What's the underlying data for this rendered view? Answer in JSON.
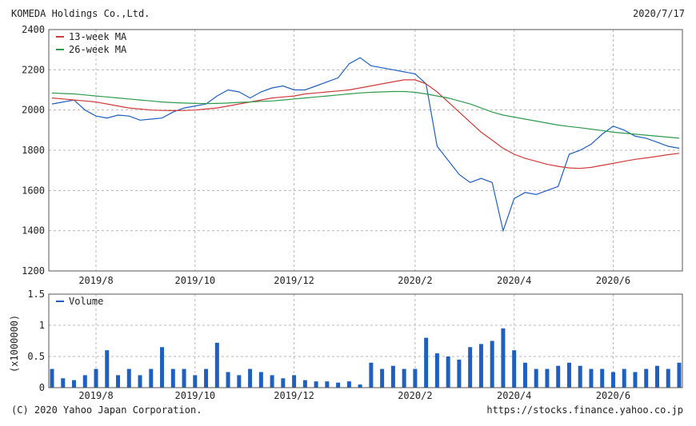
{
  "header": {
    "company": "KOMEDA Holdings Co.,Ltd.",
    "date": "2020/7/17"
  },
  "footer": {
    "copyright": "(C) 2020 Yahoo Japan Corporation.",
    "url": "https://stocks.finance.yahoo.co.jp"
  },
  "colors": {
    "price": "#1f5fbf",
    "ma13": "#d03a3a",
    "ma26": "#2e9a4e",
    "volume": "#1f5fbf",
    "grid": "#b8b8b8",
    "frame": "#555555"
  },
  "chart_data": [
    {
      "type": "line",
      "title": "",
      "x_labels": [
        "2019/8",
        "2019/10",
        "2019/12",
        "2020/2",
        "2020/4",
        "2020/6"
      ],
      "x_label_weeks": [
        4,
        13,
        22,
        33,
        42,
        51
      ],
      "week_count": 58,
      "ylim": [
        1200,
        2400
      ],
      "y_ticks": [
        1200,
        1400,
        1600,
        1800,
        2000,
        2200,
        2400
      ],
      "legend": [
        "13-week MA",
        "26-week MA"
      ],
      "legend_position": "top-left",
      "grid": true,
      "series": [
        {
          "name": "Price",
          "color": "#1f5fbf",
          "values": [
            2030,
            2040,
            2050,
            2000,
            1970,
            1960,
            1975,
            1970,
            1950,
            1955,
            1960,
            1990,
            2010,
            2020,
            2030,
            2070,
            2100,
            2090,
            2060,
            2090,
            2110,
            2120,
            2100,
            2100,
            2120,
            2140,
            2160,
            2230,
            2260,
            2220,
            2210,
            2200,
            2190,
            2180,
            2130,
            1820,
            1750,
            1680,
            1640,
            1660,
            1640,
            1400,
            1560,
            1590,
            1580,
            1600,
            1620,
            1780,
            1800,
            1830,
            1880,
            1920,
            1900,
            1870,
            1860,
            1840,
            1820,
            1810
          ]
        },
        {
          "name": "13-week MA",
          "color": "#d03a3a",
          "values": [
            2060,
            2055,
            2050,
            2045,
            2040,
            2030,
            2020,
            2010,
            2005,
            2000,
            1998,
            1997,
            1998,
            2000,
            2005,
            2010,
            2020,
            2030,
            2040,
            2050,
            2060,
            2065,
            2070,
            2080,
            2085,
            2090,
            2095,
            2100,
            2110,
            2120,
            2130,
            2140,
            2150,
            2150,
            2130,
            2090,
            2040,
            1990,
            1940,
            1890,
            1850,
            1810,
            1780,
            1760,
            1745,
            1730,
            1720,
            1712,
            1710,
            1715,
            1725,
            1735,
            1745,
            1755,
            1762,
            1770,
            1778,
            1785
          ]
        },
        {
          "name": "26-week MA",
          "color": "#2e9a4e",
          "values": [
            2085,
            2082,
            2080,
            2075,
            2070,
            2065,
            2060,
            2055,
            2050,
            2045,
            2040,
            2037,
            2035,
            2033,
            2032,
            2033,
            2035,
            2038,
            2040,
            2043,
            2045,
            2050,
            2055,
            2060,
            2065,
            2070,
            2075,
            2080,
            2085,
            2088,
            2090,
            2092,
            2092,
            2088,
            2080,
            2070,
            2060,
            2045,
            2030,
            2010,
            1990,
            1975,
            1965,
            1955,
            1945,
            1935,
            1925,
            1918,
            1912,
            1905,
            1898,
            1890,
            1885,
            1880,
            1875,
            1870,
            1865,
            1860
          ]
        }
      ]
    },
    {
      "type": "bar",
      "title": "",
      "ylabel": "(x1000000)",
      "ylim": [
        0,
        1.5
      ],
      "y_ticks": [
        0,
        0.5,
        1,
        1.5
      ],
      "legend": [
        "Volume"
      ],
      "legend_position": "top-left",
      "grid": true,
      "series": [
        {
          "name": "Volume",
          "color": "#1f5fbf",
          "values": [
            0.3,
            0.15,
            0.12,
            0.2,
            0.3,
            0.6,
            0.2,
            0.3,
            0.2,
            0.3,
            0.65,
            0.3,
            0.3,
            0.2,
            0.3,
            0.72,
            0.25,
            0.2,
            0.3,
            0.25,
            0.2,
            0.15,
            0.2,
            0.12,
            0.1,
            0.1,
            0.08,
            0.1,
            0.05,
            0.4,
            0.3,
            0.35,
            0.3,
            0.3,
            0.8,
            0.55,
            0.5,
            0.45,
            0.65,
            0.7,
            0.75,
            0.95,
            0.6,
            0.4,
            0.3,
            0.3,
            0.35,
            0.4,
            0.35,
            0.3,
            0.3,
            0.25,
            0.3,
            0.25,
            0.3,
            0.35,
            0.3,
            0.4
          ]
        }
      ]
    }
  ]
}
